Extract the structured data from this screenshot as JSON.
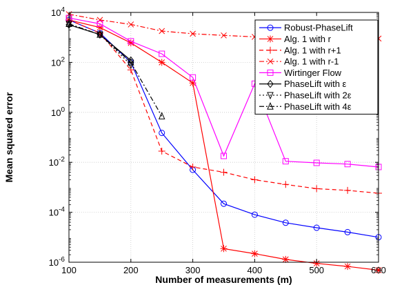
{
  "chart_data": {
    "type": "line",
    "xlabel": "Number of measurements (m)",
    "ylabel": "Mean squared error",
    "y_scale": "log",
    "xlim": [
      100,
      600
    ],
    "ylim": [
      1e-06,
      10000.0
    ],
    "grid": true,
    "legend_position": "top-right",
    "x_ticks": [
      "100",
      "200",
      "300",
      "400",
      "500",
      "600"
    ],
    "y_ticks": [
      {
        "base": "10",
        "exp": "-6"
      },
      {
        "base": "10",
        "exp": "-4"
      },
      {
        "base": "10",
        "exp": "-2"
      },
      {
        "base": "10",
        "exp": "0"
      },
      {
        "base": "10",
        "exp": "2"
      },
      {
        "base": "10",
        "exp": "4"
      }
    ],
    "y_tick_values": [
      1e-06,
      0.0001,
      0.01,
      1,
      100,
      10000
    ],
    "series": [
      {
        "name": "Robust-PhaseLift",
        "color": "#0000ff",
        "dash": "solid",
        "marker": "circle",
        "x": [
          100,
          150,
          200,
          250,
          300,
          350,
          400,
          450,
          500,
          550,
          600
        ],
        "y": [
          5000,
          1500,
          100,
          0.15,
          0.005,
          0.00022,
          8e-05,
          3.8e-05,
          2.4e-05,
          1.6e-05,
          1e-05
        ]
      },
      {
        "name": "Alg. 1 with r",
        "color": "#ff0000",
        "dash": "solid",
        "marker": "asterisk",
        "x": [
          100,
          150,
          200,
          250,
          300,
          350,
          400,
          450,
          500,
          550,
          600
        ],
        "y": [
          5000,
          2500,
          600,
          100,
          15,
          3.5e-06,
          2.2e-06,
          1.3e-06,
          9e-07,
          6.8e-07,
          4.8e-07
        ]
      },
      {
        "name": "Alg. 1 with r+1",
        "color": "#ff0000",
        "dash": "dashed",
        "marker": "plus",
        "x": [
          100,
          150,
          200,
          250,
          300,
          350,
          400,
          450,
          500,
          550,
          600
        ],
        "y": [
          5000,
          1500,
          50,
          0.028,
          0.0065,
          0.004,
          0.002,
          0.0013,
          0.00088,
          0.00075,
          0.00058
        ]
      },
      {
        "name": "Alg. 1 with r-1",
        "color": "#ff0000",
        "dash": "dashdot",
        "marker": "cross",
        "x": [
          100,
          150,
          200,
          250,
          300,
          350,
          400,
          450,
          500,
          550,
          600
        ],
        "y": [
          8500,
          5000,
          3300,
          1800,
          1400,
          1200,
          1050,
          1000,
          980,
          950,
          900
        ]
      },
      {
        "name": "Wirtinger Flow",
        "color": "#ff00ff",
        "dash": "solid",
        "marker": "square",
        "x": [
          100,
          150,
          200,
          250,
          300,
          350,
          400,
          450,
          500,
          550,
          600
        ],
        "y": [
          6000,
          3500,
          700,
          220,
          25,
          0.018,
          14,
          0.011,
          0.0095,
          0.0085,
          0.0065
        ]
      },
      {
        "name": "PhaseLift with ε",
        "color": "#000000",
        "dash": "solid",
        "marker": "diamond",
        "x": [
          100,
          150,
          200
        ],
        "y": [
          3200,
          1300,
          120
        ]
      },
      {
        "name": "PhaseLift with 2ε",
        "color": "#000000",
        "dash": "dotted",
        "marker": "triangle-down",
        "x": [
          100,
          150,
          200
        ],
        "y": [
          3500,
          1300,
          80
        ]
      },
      {
        "name": "PhaseLift with 4ε",
        "color": "#000000",
        "dash": "dashdot",
        "marker": "triangle-up",
        "x": [
          100,
          150,
          200,
          250
        ],
        "y": [
          3500,
          1300,
          100,
          0.7
        ]
      }
    ]
  }
}
